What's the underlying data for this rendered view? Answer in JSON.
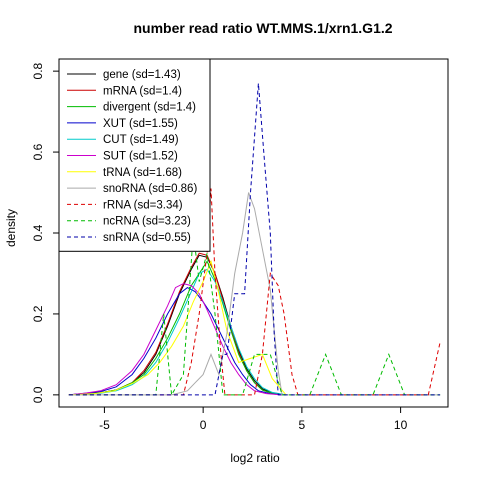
{
  "chart_data": {
    "type": "line",
    "title": "number read ratio WT.MMS.1/xrn1.G1.2",
    "xlabel": "log2 ratio",
    "ylabel": "density",
    "xlim": [
      -7.3,
      12.4
    ],
    "ylim": [
      -0.03,
      0.83
    ],
    "xticks": [
      -5,
      0,
      5,
      10
    ],
    "yticks": [
      0.0,
      0.2,
      0.4,
      0.6,
      0.8
    ],
    "xtick_labels": [
      "-5",
      "0",
      "5",
      "10"
    ],
    "ytick_labels": [
      "0.0",
      "0.2",
      "0.4",
      "0.6",
      "0.8"
    ],
    "grid": false,
    "legend_position": "top-left",
    "series": [
      {
        "name": "gene (sd=1.43)",
        "color": "#000000",
        "dash": false,
        "points": [
          [
            -6.8,
            0.0
          ],
          [
            -6.0,
            0.003
          ],
          [
            -5.2,
            0.005
          ],
          [
            -4.4,
            0.012
          ],
          [
            -3.6,
            0.03
          ],
          [
            -3.0,
            0.055
          ],
          [
            -2.4,
            0.1
          ],
          [
            -1.8,
            0.17
          ],
          [
            -1.2,
            0.25
          ],
          [
            -0.6,
            0.31
          ],
          [
            -0.2,
            0.345
          ],
          [
            0.2,
            0.34
          ],
          [
            0.6,
            0.3
          ],
          [
            1.0,
            0.24
          ],
          [
            1.4,
            0.17
          ],
          [
            1.8,
            0.11
          ],
          [
            2.2,
            0.065
          ],
          [
            2.6,
            0.035
          ],
          [
            3.0,
            0.015
          ],
          [
            3.5,
            0.005
          ],
          [
            4.2,
            0.0
          ]
        ]
      },
      {
        "name": "mRNA (sd=1.4)",
        "color": "#cc0000",
        "dash": false,
        "points": [
          [
            -6.8,
            0.0
          ],
          [
            -6.0,
            0.003
          ],
          [
            -5.2,
            0.005
          ],
          [
            -4.4,
            0.012
          ],
          [
            -3.6,
            0.03
          ],
          [
            -3.0,
            0.06
          ],
          [
            -2.4,
            0.105
          ],
          [
            -1.8,
            0.175
          ],
          [
            -1.2,
            0.255
          ],
          [
            -0.6,
            0.315
          ],
          [
            -0.2,
            0.35
          ],
          [
            0.2,
            0.345
          ],
          [
            0.6,
            0.3
          ],
          [
            1.0,
            0.235
          ],
          [
            1.4,
            0.165
          ],
          [
            1.8,
            0.105
          ],
          [
            2.2,
            0.06
          ],
          [
            2.6,
            0.03
          ],
          [
            3.0,
            0.012
          ],
          [
            3.5,
            0.004
          ],
          [
            4.2,
            0.0
          ]
        ]
      },
      {
        "name": "divergent (sd=1.4)",
        "color": "#00bb00",
        "dash": false,
        "points": [
          [
            -6.8,
            0.0
          ],
          [
            -6.0,
            0.002
          ],
          [
            -5.2,
            0.005
          ],
          [
            -4.4,
            0.012
          ],
          [
            -3.6,
            0.03
          ],
          [
            -3.0,
            0.05
          ],
          [
            -2.4,
            0.09
          ],
          [
            -1.8,
            0.14
          ],
          [
            -1.2,
            0.2
          ],
          [
            -0.6,
            0.27
          ],
          [
            -0.2,
            0.3
          ],
          [
            0.2,
            0.33
          ],
          [
            0.6,
            0.285
          ],
          [
            1.0,
            0.225
          ],
          [
            1.4,
            0.16
          ],
          [
            1.8,
            0.1
          ],
          [
            2.2,
            0.06
          ],
          [
            2.6,
            0.03
          ],
          [
            3.0,
            0.012
          ],
          [
            3.5,
            0.004
          ],
          [
            4.2,
            0.0
          ]
        ]
      },
      {
        "name": "XUT (sd=1.55)",
        "color": "#0000cc",
        "dash": false,
        "points": [
          [
            -6.8,
            0.0
          ],
          [
            -6.0,
            0.004
          ],
          [
            -5.2,
            0.008
          ],
          [
            -4.4,
            0.02
          ],
          [
            -3.6,
            0.05
          ],
          [
            -3.0,
            0.09
          ],
          [
            -2.4,
            0.14
          ],
          [
            -1.8,
            0.2
          ],
          [
            -1.2,
            0.25
          ],
          [
            -0.8,
            0.265
          ],
          [
            -0.4,
            0.255
          ],
          [
            0.0,
            0.23
          ],
          [
            0.4,
            0.2
          ],
          [
            0.8,
            0.16
          ],
          [
            1.2,
            0.12
          ],
          [
            1.6,
            0.08
          ],
          [
            2.0,
            0.05
          ],
          [
            2.4,
            0.025
          ],
          [
            2.8,
            0.01
          ],
          [
            3.4,
            0.003
          ],
          [
            4.0,
            0.0
          ]
        ]
      },
      {
        "name": "CUT (sd=1.49)",
        "color": "#00cccc",
        "dash": false,
        "points": [
          [
            -6.8,
            0.0
          ],
          [
            -6.0,
            0.002
          ],
          [
            -5.2,
            0.004
          ],
          [
            -4.4,
            0.01
          ],
          [
            -3.6,
            0.025
          ],
          [
            -3.0,
            0.045
          ],
          [
            -2.4,
            0.08
          ],
          [
            -1.8,
            0.13
          ],
          [
            -1.2,
            0.19
          ],
          [
            -0.6,
            0.255
          ],
          [
            -0.2,
            0.3
          ],
          [
            0.2,
            0.31
          ],
          [
            0.6,
            0.28
          ],
          [
            1.0,
            0.23
          ],
          [
            1.4,
            0.17
          ],
          [
            1.8,
            0.115
          ],
          [
            2.2,
            0.07
          ],
          [
            2.6,
            0.04
          ],
          [
            3.0,
            0.018
          ],
          [
            3.5,
            0.006
          ],
          [
            4.2,
            0.0
          ]
        ]
      },
      {
        "name": "SUT (sd=1.52)",
        "color": "#cc00cc",
        "dash": false,
        "points": [
          [
            -6.8,
            0.0
          ],
          [
            -6.0,
            0.004
          ],
          [
            -5.2,
            0.01
          ],
          [
            -4.4,
            0.025
          ],
          [
            -3.6,
            0.06
          ],
          [
            -3.0,
            0.1
          ],
          [
            -2.4,
            0.16
          ],
          [
            -1.8,
            0.22
          ],
          [
            -1.4,
            0.265
          ],
          [
            -1.0,
            0.275
          ],
          [
            -0.6,
            0.27
          ],
          [
            -0.2,
            0.25
          ],
          [
            0.2,
            0.21
          ],
          [
            0.6,
            0.165
          ],
          [
            1.0,
            0.12
          ],
          [
            1.4,
            0.08
          ],
          [
            1.8,
            0.05
          ],
          [
            2.2,
            0.025
          ],
          [
            2.6,
            0.01
          ],
          [
            3.2,
            0.003
          ],
          [
            4.0,
            0.0
          ]
        ]
      },
      {
        "name": "tRNA (sd=1.68)",
        "color": "#ffff00",
        "dash": false,
        "points": [
          [
            -6.8,
            0.0
          ],
          [
            -5.5,
            0.003
          ],
          [
            -4.5,
            0.01
          ],
          [
            -3.5,
            0.03
          ],
          [
            -2.8,
            0.05
          ],
          [
            -2.2,
            0.08
          ],
          [
            -1.6,
            0.12
          ],
          [
            -1.0,
            0.17
          ],
          [
            -0.5,
            0.23
          ],
          [
            0.0,
            0.28
          ],
          [
            0.4,
            0.33
          ],
          [
            0.8,
            0.25
          ],
          [
            1.2,
            0.16
          ],
          [
            1.8,
            0.08
          ],
          [
            2.4,
            0.09
          ],
          [
            3.0,
            0.1
          ],
          [
            3.5,
            0.04
          ],
          [
            4.2,
            0.0
          ]
        ]
      },
      {
        "name": "snoRNA (sd=0.86)",
        "color": "#aaaaaa",
        "dash": false,
        "points": [
          [
            -6.8,
            0.0
          ],
          [
            -1.6,
            0.0
          ],
          [
            -0.8,
            0.01
          ],
          [
            -0.4,
            0.03
          ],
          [
            0.0,
            0.05
          ],
          [
            0.4,
            0.1
          ],
          [
            0.8,
            0.05
          ],
          [
            1.2,
            0.15
          ],
          [
            1.6,
            0.3
          ],
          [
            2.0,
            0.4
          ],
          [
            2.3,
            0.5
          ],
          [
            2.6,
            0.46
          ],
          [
            3.0,
            0.36
          ],
          [
            3.4,
            0.26
          ],
          [
            3.6,
            0.16
          ],
          [
            3.8,
            0.06
          ],
          [
            4.0,
            0.0
          ],
          [
            12.0,
            0.0
          ]
        ]
      },
      {
        "name": "rRNA (sd=3.34)",
        "color": "#dd0000",
        "dash": true,
        "points": [
          [
            -6.8,
            0.0
          ],
          [
            -1.0,
            0.0
          ],
          [
            -0.6,
            0.08
          ],
          [
            -0.2,
            0.2
          ],
          [
            0.2,
            0.35
          ],
          [
            0.4,
            0.51
          ],
          [
            0.6,
            0.3
          ],
          [
            0.9,
            0.1
          ],
          [
            1.1,
            0.0
          ],
          [
            2.0,
            0.0
          ],
          [
            2.6,
            0.0
          ],
          [
            3.0,
            0.1
          ],
          [
            3.4,
            0.3
          ],
          [
            3.8,
            0.27
          ],
          [
            4.1,
            0.2
          ],
          [
            4.5,
            0.05
          ],
          [
            4.8,
            0.0
          ],
          [
            11.4,
            0.0
          ],
          [
            12.0,
            0.13
          ]
        ]
      },
      {
        "name": "ncRNA (sd=3.23)",
        "color": "#00bb00",
        "dash": true,
        "points": [
          [
            -6.8,
            0.0
          ],
          [
            -2.4,
            0.0
          ],
          [
            -2.0,
            0.2
          ],
          [
            -1.6,
            0.0
          ],
          [
            -1.0,
            0.05
          ],
          [
            -0.5,
            0.4
          ],
          [
            -0.2,
            0.28
          ],
          [
            0.2,
            0.35
          ],
          [
            0.6,
            0.2
          ],
          [
            1.0,
            0.0
          ],
          [
            2.0,
            0.0
          ],
          [
            2.6,
            0.1
          ],
          [
            3.4,
            0.1
          ],
          [
            4.0,
            0.0
          ],
          [
            5.4,
            0.0
          ],
          [
            6.2,
            0.1
          ],
          [
            7.0,
            0.0
          ],
          [
            8.6,
            0.0
          ],
          [
            9.4,
            0.1
          ],
          [
            10.2,
            0.0
          ],
          [
            12.0,
            0.0
          ]
        ]
      },
      {
        "name": "snRNA (sd=0.55)",
        "color": "#0000aa",
        "dash": true,
        "points": [
          [
            -6.8,
            0.0
          ],
          [
            0.6,
            0.0
          ],
          [
            1.0,
            0.1
          ],
          [
            1.2,
            0.1
          ],
          [
            1.4,
            0.17
          ],
          [
            1.6,
            0.25
          ],
          [
            2.1,
            0.25
          ],
          [
            2.4,
            0.5
          ],
          [
            2.8,
            0.77
          ],
          [
            3.1,
            0.58
          ],
          [
            3.4,
            0.4
          ],
          [
            3.6,
            0.15
          ],
          [
            3.8,
            0.0
          ],
          [
            12.0,
            0.0
          ]
        ]
      }
    ]
  }
}
